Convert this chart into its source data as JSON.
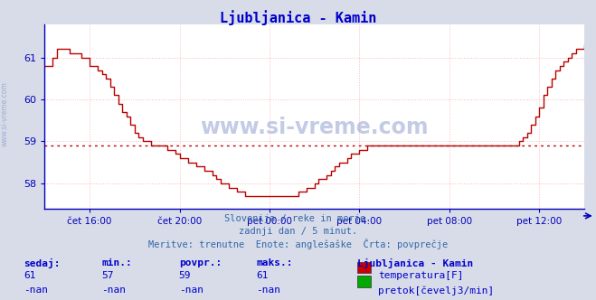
{
  "title": "Ljubljanica - Kamin",
  "title_color": "#0000cc",
  "bg_color": "#d8dce8",
  "plot_bg_color": "#ffffff",
  "grid_color": "#ffb0b0",
  "axis_color": "#0000bb",
  "line_color": "#bb0000",
  "avg_value": 58.9,
  "ylim": [
    57.4,
    61.8
  ],
  "yticks": [
    58,
    59,
    60,
    61
  ],
  "watermark": "www.si-vreme.com",
  "watermark_color": "#8899cc",
  "subtitle1": "Slovenija / reke in morje.",
  "subtitle2": "zadnji dan / 5 minut.",
  "subtitle3": "Meritve: trenutne  Enote: anglešaške  Črta: povprečje",
  "subtitle_color": "#3366aa",
  "footer_label_color": "#0000cc",
  "footer_headers": [
    "sedaj:",
    "min.:",
    "povpr.:",
    "maks.:"
  ],
  "footer_values_temp": [
    "61",
    "57",
    "59",
    "61"
  ],
  "footer_values_flow": [
    "-nan",
    "-nan",
    "-nan",
    "-nan"
  ],
  "footer_legend_title": "Ljubljanica - Kamin",
  "footer_temp_label": "temperatura[F]",
  "footer_flow_label": "pretok[čevelj3/min]",
  "temp_color": "#cc0000",
  "flow_color": "#00aa00",
  "x_tick_labels": [
    "čet 16:00",
    "čet 20:00",
    "pet 00:00",
    "pet 04:00",
    "pet 08:00",
    "pet 12:00"
  ],
  "sidewater": "www.si-vreme.com",
  "sidewater_color": "#8899cc",
  "temp_data": [
    60.8,
    60.8,
    61.0,
    61.2,
    61.2,
    61.2,
    61.1,
    61.1,
    61.1,
    61.0,
    61.0,
    60.8,
    60.8,
    60.7,
    60.6,
    60.5,
    60.3,
    60.1,
    59.9,
    59.7,
    59.6,
    59.4,
    59.2,
    59.1,
    59.0,
    59.0,
    58.9,
    58.9,
    58.9,
    58.9,
    58.8,
    58.8,
    58.7,
    58.6,
    58.6,
    58.5,
    58.5,
    58.4,
    58.4,
    58.3,
    58.3,
    58.2,
    58.1,
    58.0,
    58.0,
    57.9,
    57.9,
    57.8,
    57.8,
    57.7,
    57.7,
    57.7,
    57.7,
    57.7,
    57.7,
    57.7,
    57.7,
    57.7,
    57.7,
    57.7,
    57.7,
    57.7,
    57.8,
    57.8,
    57.9,
    57.9,
    58.0,
    58.1,
    58.1,
    58.2,
    58.3,
    58.4,
    58.5,
    58.5,
    58.6,
    58.7,
    58.7,
    58.8,
    58.8,
    58.9,
    58.9,
    58.9,
    58.9,
    58.9,
    58.9,
    58.9,
    58.9,
    58.9,
    58.9,
    58.9,
    58.9,
    58.9,
    58.9,
    58.9,
    58.9,
    58.9,
    58.9,
    58.9,
    58.9,
    58.9,
    58.9,
    58.9,
    58.9,
    58.9,
    58.9,
    58.9,
    58.9,
    58.9,
    58.9,
    58.9,
    58.9,
    58.9,
    58.9,
    58.9,
    58.9,
    58.9,
    59.0,
    59.1,
    59.2,
    59.4,
    59.6,
    59.8,
    60.1,
    60.3,
    60.5,
    60.7,
    60.8,
    60.9,
    61.0,
    61.1,
    61.2,
    61.2,
    61.3
  ]
}
